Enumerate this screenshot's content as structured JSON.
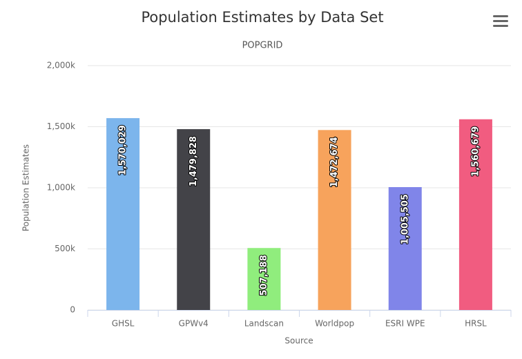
{
  "chart_data": {
    "type": "bar",
    "title": "Population Estimates by Data Set",
    "subtitle": "POPGRID",
    "x_label": "Source",
    "y_label": "Population Estimates",
    "categories": [
      "GHSL",
      "GPWv4",
      "Landscan",
      "Worldpop",
      "ESRI WPE",
      "HRSL"
    ],
    "values": [
      1570029,
      1479828,
      507188,
      1472674,
      1005505,
      1560679
    ],
    "value_labels": [
      "1,570,029",
      "1,479,828",
      "507,188",
      "1,472,674",
      "1,005,505",
      "1,560,679"
    ],
    "colors": [
      "#7cb5ec",
      "#434348",
      "#90ed7d",
      "#f7a35c",
      "#8085e9",
      "#f15c80"
    ],
    "ylim": [
      0,
      2000000
    ],
    "yticks": [
      0,
      {
        "value": 500000,
        "label": "500k"
      },
      {
        "value": 1000000,
        "label": "1,000k"
      },
      {
        "value": 1500000,
        "label": "1,500k"
      },
      {
        "value": 2000000,
        "label": "2,000k"
      }
    ],
    "grid": true
  }
}
